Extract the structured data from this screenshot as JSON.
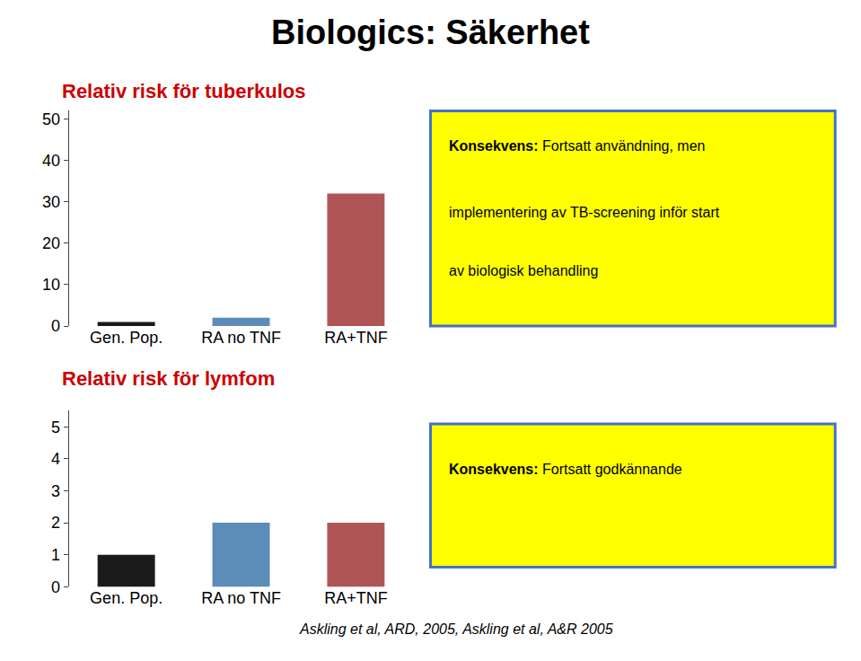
{
  "title": "Biologics: Säkerhet",
  "annotations": [
    "Askling et al, ARD, 2005, Askling et al, A&R 2005"
  ],
  "chart_data": [
    {
      "type": "bar",
      "title": "Relativ risk för tuberkulos",
      "categories": [
        "Gen. Pop.",
        "RA no TNF",
        "RA+TNF"
      ],
      "values": [
        1,
        2,
        32
      ],
      "colors": [
        "#1a1a1a",
        "#5b8db8",
        "#b05555"
      ],
      "ylim": [
        0,
        52
      ],
      "yticks": [
        0,
        10,
        20,
        30,
        40,
        50
      ],
      "grid": false,
      "annotations": [
        "Konsekvens: Fortsatt användning, men",
        "implementering av TB-screening inför start",
        "av biologisk behandling"
      ]
    },
    {
      "type": "bar",
      "title": "Relativ risk för lymfom",
      "categories": [
        "Gen. Pop.",
        "RA no TNF",
        "RA+TNF"
      ],
      "values": [
        1,
        2,
        2
      ],
      "colors": [
        "#1a1a1a",
        "#5b8db8",
        "#b05555"
      ],
      "ylim": [
        0,
        5.5
      ],
      "yticks": [
        0,
        1,
        2,
        3,
        4,
        5
      ],
      "grid": false,
      "annotations": [
        "Konsekvens: Fortsatt godkännande"
      ]
    }
  ]
}
